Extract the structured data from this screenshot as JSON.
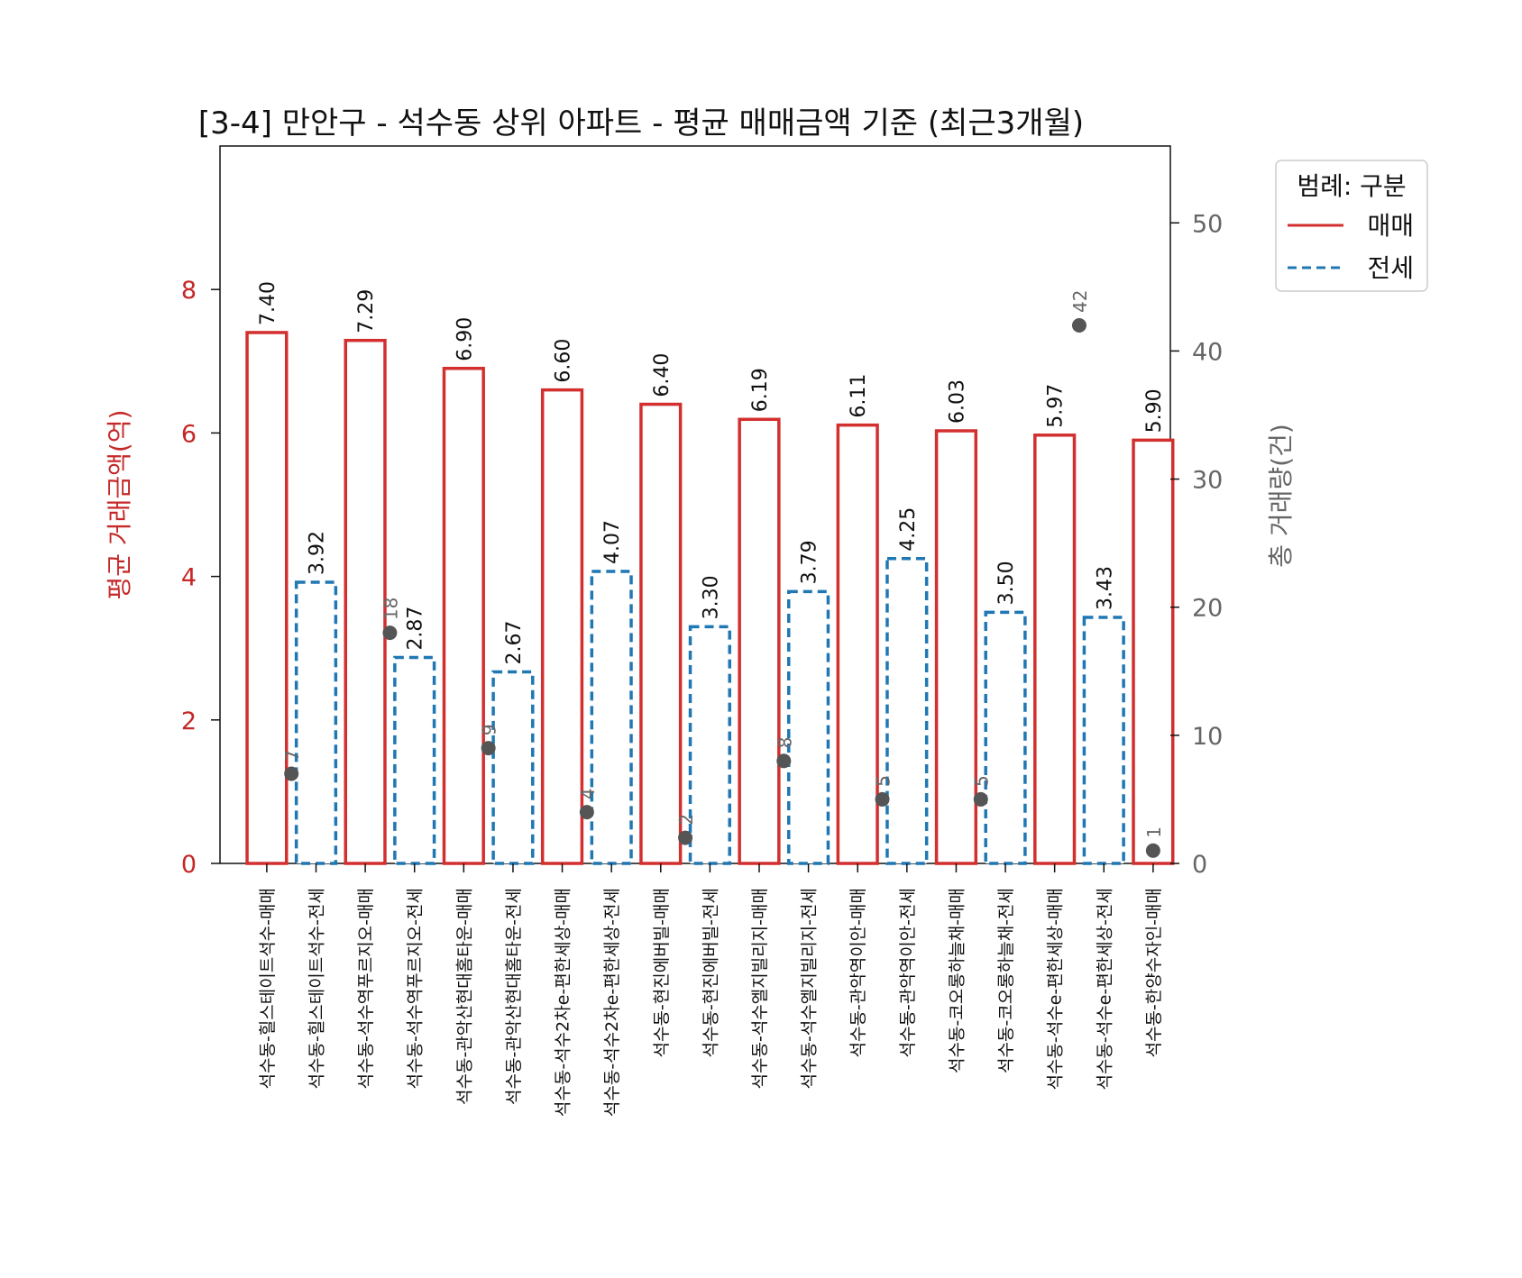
{
  "chart_data": {
    "type": "bar",
    "title": "[3-4] 만안구 - 석수동 상위 아파트 - 평균 매매금액 기준 (최근3개월)",
    "ylabel_left": "평균 거래금액(억)",
    "ylabel_right": "총 거래량(건)",
    "ylim_left": [
      0,
      10
    ],
    "ylim_right": [
      0,
      56
    ],
    "yticks_left": [
      "0",
      "2",
      "4",
      "6",
      "8"
    ],
    "yticks_right": [
      "0",
      "10",
      "20",
      "30",
      "40",
      "50"
    ],
    "categories": [
      "석수동-힐스테이트석수-매매",
      "석수동-힐스테이트석수-전세",
      "석수동-석수역푸르지오-매매",
      "석수동-석수역푸르지오-전세",
      "석수동-관악산현대홈타운-매매",
      "석수동-관악산현대홈타운-전세",
      "석수동-석수2차e-편한세상-매매",
      "석수동-석수2차e-편한세상-전세",
      "석수동-현진에버빌-매매",
      "석수동-현진에버빌-전세",
      "석수동-석수엘지빌리지-매매",
      "석수동-석수엘지빌리지-전세",
      "석수동-관악역이안-매매",
      "석수동-관악역이안-전세",
      "석수동-코오롱하늘채-매매",
      "석수동-코오롱하늘채-전세",
      "석수동-석수e-편한세상-매매",
      "석수동-석수e-편한세상-전세",
      "석수동-한양수자인-매매"
    ],
    "series_type": [
      "매매",
      "전세",
      "매매",
      "전세",
      "매매",
      "전세",
      "매매",
      "전세",
      "매매",
      "전세",
      "매매",
      "전세",
      "매매",
      "전세",
      "매매",
      "전세",
      "매매",
      "전세",
      "매매"
    ],
    "values": [
      7.4,
      3.92,
      7.29,
      2.87,
      6.9,
      2.67,
      6.6,
      4.07,
      6.4,
      3.3,
      6.19,
      3.79,
      6.11,
      4.25,
      6.03,
      3.5,
      5.97,
      3.43,
      5.9
    ],
    "value_labels": [
      "7.40",
      "3.92",
      "7.29",
      "2.87",
      "6.90",
      "2.67",
      "6.60",
      "4.07",
      "6.40",
      "3.30",
      "6.19",
      "3.79",
      "6.11",
      "4.25",
      "6.03",
      "3.50",
      "5.97",
      "3.43",
      "5.90"
    ],
    "counts": [
      {
        "index": 0.5,
        "value": 7,
        "label": "7"
      },
      {
        "index": 2.5,
        "value": 18,
        "label": "18"
      },
      {
        "index": 4.5,
        "value": 9,
        "label": "9"
      },
      {
        "index": 6.5,
        "value": 4,
        "label": "4"
      },
      {
        "index": 8.5,
        "value": 2,
        "label": "2"
      },
      {
        "index": 10.5,
        "value": 8,
        "label": "8"
      },
      {
        "index": 12.5,
        "value": 5,
        "label": "5"
      },
      {
        "index": 14.5,
        "value": 5,
        "label": "5"
      },
      {
        "index": 16.5,
        "value": 42,
        "label": "42"
      },
      {
        "index": 18,
        "value": 1,
        "label": "1"
      }
    ],
    "legend": {
      "title": "범례: 구분",
      "position": "top-right",
      "items": [
        {
          "label": "매매",
          "color": "#d32f2f",
          "style": "solid"
        },
        {
          "label": "전세",
          "color": "#1f77b4",
          "style": "dashed"
        }
      ]
    },
    "colors": {
      "sale": "#d32f2f",
      "jeonse": "#1f77b4",
      "count_marker": "#555555",
      "left_axis": "#c62828",
      "right_axis": "#666666"
    }
  }
}
